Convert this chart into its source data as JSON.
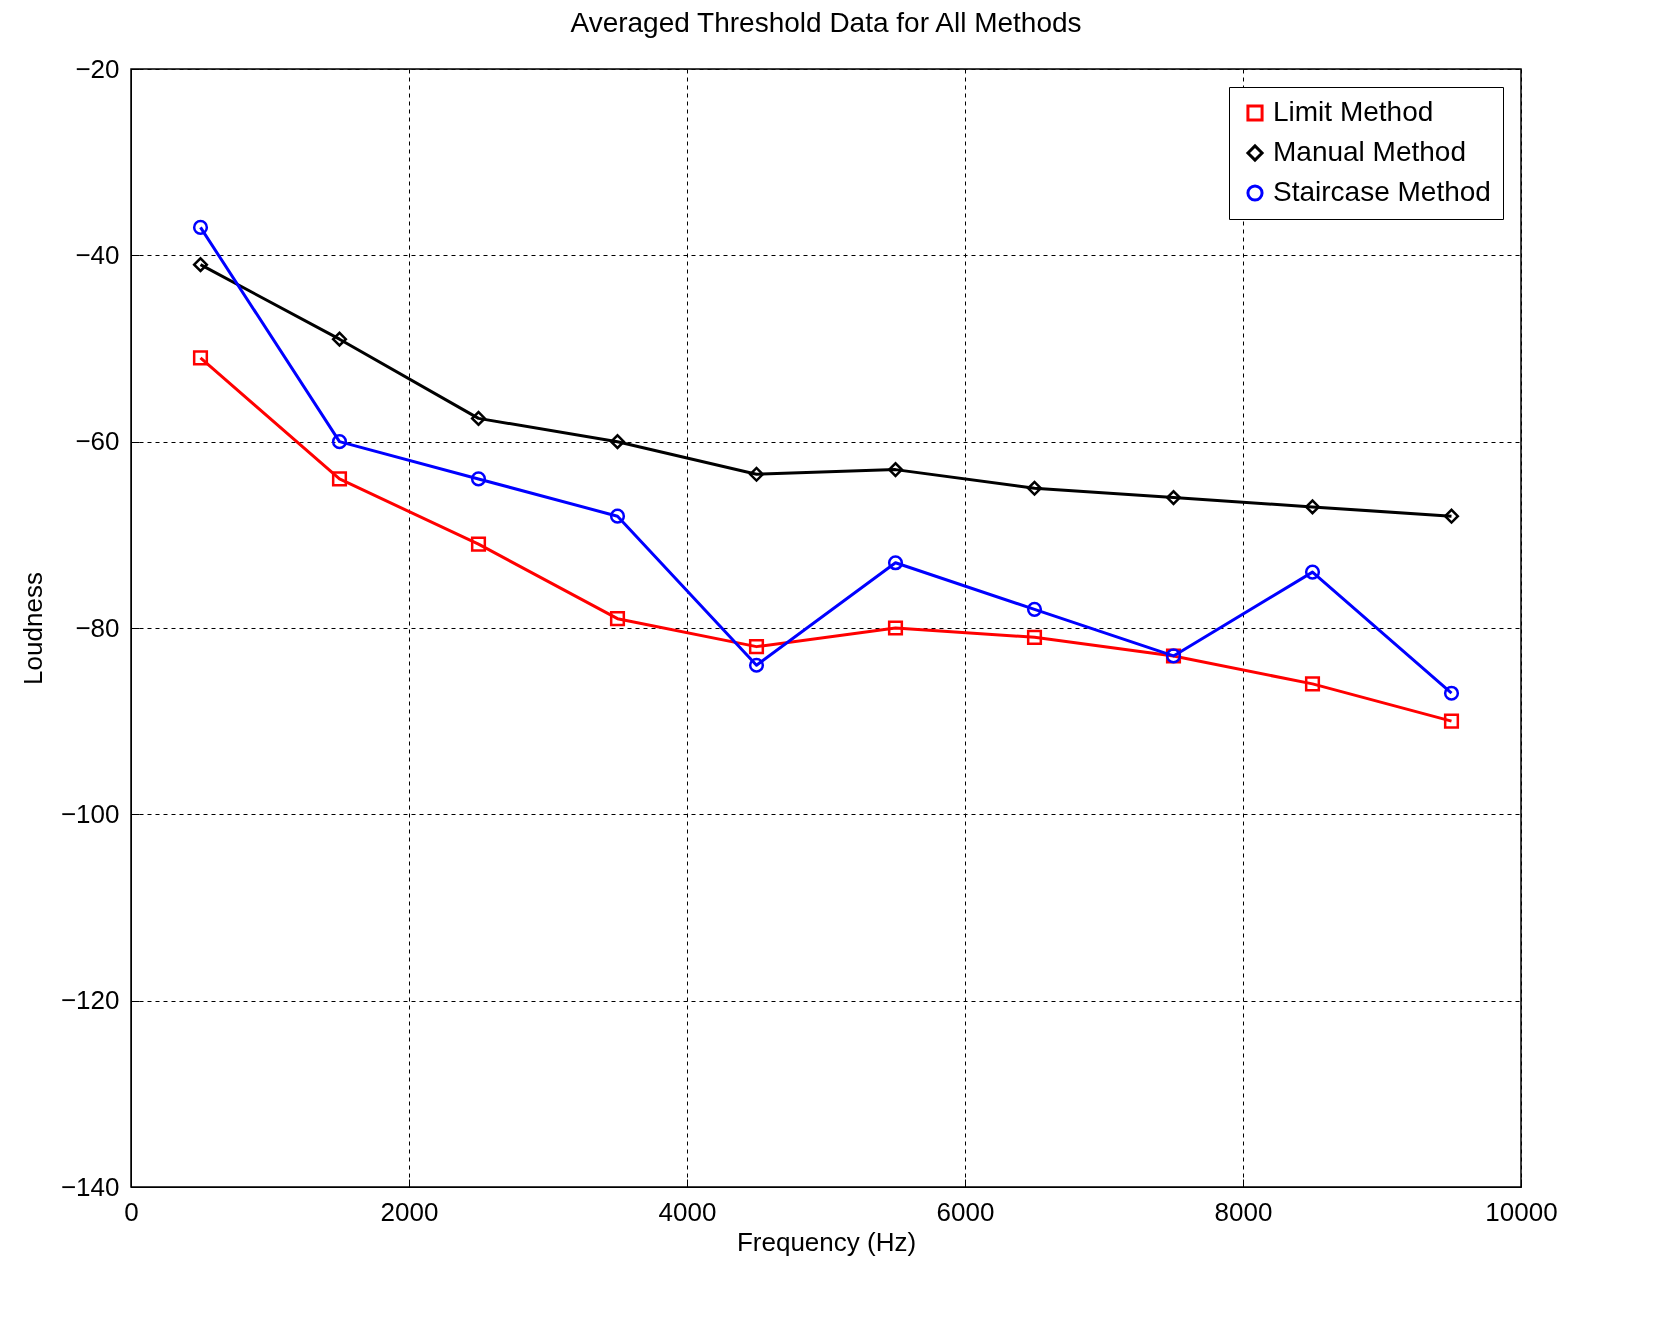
{
  "chart_data": {
    "type": "line",
    "title": "Averaged Threshold Data for All Methods",
    "xlabel": "Frequency (Hz)",
    "ylabel": "Loudness",
    "x": [
      500,
      1500,
      2500,
      3500,
      4500,
      5500,
      6500,
      7500,
      8500,
      9500
    ],
    "series": [
      {
        "name": "Limit Method",
        "color": "#ff0000",
        "marker": "square",
        "values": [
          -51,
          -64,
          -71,
          -79,
          -82,
          -80,
          -81,
          -83,
          -86,
          -90
        ]
      },
      {
        "name": "Manual Method",
        "color": "#000000",
        "marker": "diamond",
        "values": [
          -41,
          -49,
          -57.5,
          -60,
          -63.5,
          -63,
          -65,
          -66,
          -67,
          -68
        ]
      },
      {
        "name": "Staircase Method",
        "color": "#0000ff",
        "marker": "circle",
        "values": [
          -37,
          -60,
          -64,
          -68,
          -84,
          -73,
          -78,
          -83,
          -74,
          -87
        ]
      }
    ],
    "xlim": [
      0,
      10000
    ],
    "xticks": [
      0,
      2000,
      4000,
      6000,
      8000,
      10000
    ],
    "ylim": [
      -140,
      -20
    ],
    "yticks": [
      -140,
      -120,
      -100,
      -80,
      -60,
      -40,
      -20
    ],
    "grid": true,
    "legend": "top right",
    "line_style": "solid"
  }
}
